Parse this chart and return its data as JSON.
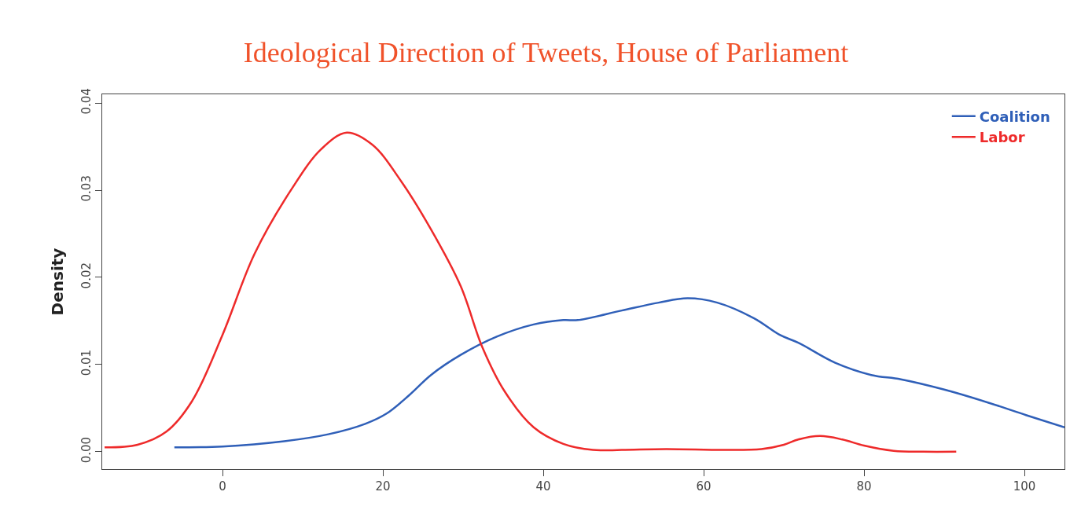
{
  "chart_data": {
    "type": "line",
    "title": "Ideological Direction of Tweets, House of Parliament",
    "ylabel": "Density",
    "xlim": [
      -15,
      105
    ],
    "xticks": [
      0,
      20,
      40,
      60,
      80,
      100
    ],
    "ylim": [
      -0.002,
      0.041
    ],
    "yticks": [
      {
        "value": 0,
        "label": "0.00"
      },
      {
        "value": 0.01,
        "label": "0.01"
      },
      {
        "value": 0.02,
        "label": "0.02"
      },
      {
        "value": 0.03,
        "label": "0.03"
      },
      {
        "value": 0.04,
        "label": "0.04"
      }
    ],
    "legend": "top right",
    "marker": "none",
    "line_style": "solid",
    "series": [
      {
        "name": "Coalition",
        "color": "#2f5fb8",
        "x": [
          -6,
          0,
          7.7,
          13.2,
          17.8,
          20.5,
          23.3,
          26,
          29.7,
          34.2,
          38.8,
          42.5,
          44.3,
          49.8,
          54.4,
          58,
          61.7,
          66.3,
          69.5,
          71.8,
          76.4,
          80.9,
          84.6,
          90.1,
          95.6,
          100.2,
          105
        ],
        "values": [
          0.0005,
          0.0006,
          0.0012,
          0.002,
          0.0032,
          0.0044,
          0.0065,
          0.0088,
          0.0111,
          0.0132,
          0.0146,
          0.0151,
          0.0151,
          0.0162,
          0.0171,
          0.0176,
          0.0171,
          0.0153,
          0.0134,
          0.0125,
          0.0102,
          0.0088,
          0.0083,
          0.0071,
          0.0056,
          0.0042,
          0.0028
        ]
      },
      {
        "name": "Labor",
        "color": "#ee2a2a",
        "x": [
          -14.7,
          -10.6,
          -7,
          -3.8,
          0,
          4,
          8.6,
          12.3,
          15.5,
          18.7,
          22.3,
          26,
          29.7,
          32.4,
          35.2,
          38.8,
          42.5,
          46.2,
          49.8,
          55.3,
          62.6,
          67.2,
          70,
          71.8,
          74.5,
          77.3,
          80,
          83.7,
          87.4,
          91.5
        ],
        "values": [
          0.0005,
          0.0008,
          0.0023,
          0.0058,
          0.0134,
          0.0227,
          0.0301,
          0.0347,
          0.0366,
          0.0352,
          0.031,
          0.0255,
          0.019,
          0.012,
          0.0069,
          0.0028,
          0.0009,
          0.0002,
          0.0002,
          0.0003,
          0.0002,
          0.0003,
          0.0008,
          0.0014,
          0.0018,
          0.0014,
          0.0007,
          0.0001,
          0.0,
          0.0
        ]
      }
    ]
  }
}
